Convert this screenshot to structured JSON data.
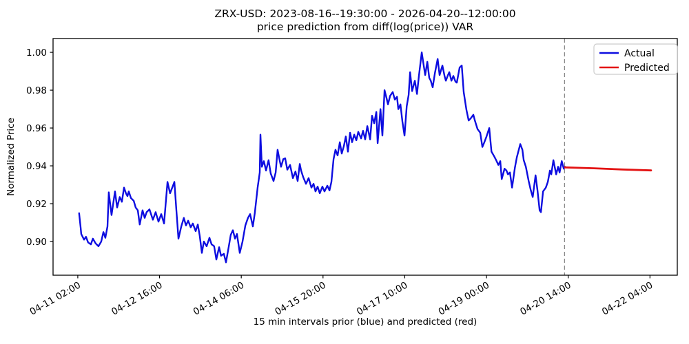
{
  "chart_data": {
    "type": "line",
    "title": "ZRX-USD: 2023-08-16--19:30:00 - 2026-04-20--12:00:00",
    "subtitle": "price prediction from diff(log(price)) VAR",
    "xlabel": "15 min intervals prior (blue) and predicted (red)",
    "ylabel": "Normalized Price",
    "x_unit": "hours since 04-11 02:00 tick (15-min interval series)",
    "xlim": [
      -11.5,
      278.7
    ],
    "ylim": [
      0.8822,
      1.0073
    ],
    "grid": false,
    "legend_position": "upper right",
    "frame_color": "#000000",
    "y_ticks": [
      {
        "value": 0.9,
        "label": "0.90"
      },
      {
        "value": 0.92,
        "label": "0.92"
      },
      {
        "value": 0.94,
        "label": "0.94"
      },
      {
        "value": 0.96,
        "label": "0.96"
      },
      {
        "value": 0.98,
        "label": "0.98"
      },
      {
        "value": 1.0,
        "label": "1.00"
      }
    ],
    "x_ticks": [
      {
        "hours": 0,
        "label": "04-11 02:00"
      },
      {
        "hours": 38,
        "label": "04-12 16:00"
      },
      {
        "hours": 76,
        "label": "04-14 06:00"
      },
      {
        "hours": 114,
        "label": "04-15 20:00"
      },
      {
        "hours": 152,
        "label": "04-17 10:00"
      },
      {
        "hours": 190,
        "label": "04-19 00:00"
      },
      {
        "hours": 228,
        "label": "04-20 14:00"
      },
      {
        "hours": 266,
        "label": "04-22 04:00"
      }
    ],
    "forecast_start": {
      "hours": 226.3,
      "line_style": "dashed",
      "color": "#888888"
    },
    "series": [
      {
        "name": "Actual",
        "color": "#0d0de0",
        "line_width": 2.4,
        "points": [
          [
            0.6,
            0.915
          ],
          [
            1.3,
            0.9075
          ],
          [
            1.6,
            0.904
          ],
          [
            2.9,
            0.901
          ],
          [
            3.8,
            0.9025
          ],
          [
            4.8,
            0.8995
          ],
          [
            6.1,
            0.8985
          ],
          [
            7.0,
            0.9015
          ],
          [
            8.3,
            0.899
          ],
          [
            9.6,
            0.8975
          ],
          [
            10.9,
            0.9
          ],
          [
            11.9,
            0.905
          ],
          [
            12.8,
            0.902
          ],
          [
            13.8,
            0.908
          ],
          [
            14.4,
            0.926
          ],
          [
            15.7,
            0.914
          ],
          [
            17.3,
            0.9265
          ],
          [
            18.3,
            0.918
          ],
          [
            19.5,
            0.9235
          ],
          [
            20.5,
            0.921
          ],
          [
            21.5,
            0.9285
          ],
          [
            22.4,
            0.9255
          ],
          [
            23.1,
            0.924
          ],
          [
            23.7,
            0.9265
          ],
          [
            24.7,
            0.923
          ],
          [
            26.0,
            0.9215
          ],
          [
            26.9,
            0.918
          ],
          [
            27.9,
            0.9165
          ],
          [
            28.8,
            0.909
          ],
          [
            30.1,
            0.9165
          ],
          [
            31.1,
            0.9125
          ],
          [
            32.0,
            0.9155
          ],
          [
            33.3,
            0.917
          ],
          [
            34.9,
            0.9115
          ],
          [
            36.2,
            0.9155
          ],
          [
            37.5,
            0.9105
          ],
          [
            38.8,
            0.9145
          ],
          [
            40.1,
            0.9095
          ],
          [
            41.7,
            0.9315
          ],
          [
            42.9,
            0.9255
          ],
          [
            43.9,
            0.9285
          ],
          [
            44.9,
            0.9315
          ],
          [
            45.8,
            0.917
          ],
          [
            46.8,
            0.9015
          ],
          [
            48.1,
            0.908
          ],
          [
            49.3,
            0.9125
          ],
          [
            50.3,
            0.9085
          ],
          [
            51.3,
            0.911
          ],
          [
            52.5,
            0.9075
          ],
          [
            53.5,
            0.9095
          ],
          [
            54.8,
            0.9055
          ],
          [
            55.8,
            0.909
          ],
          [
            56.7,
            0.903
          ],
          [
            57.7,
            0.894
          ],
          [
            58.6,
            0.9
          ],
          [
            59.9,
            0.8975
          ],
          [
            61.2,
            0.902
          ],
          [
            62.2,
            0.8985
          ],
          [
            63.4,
            0.8975
          ],
          [
            64.4,
            0.8905
          ],
          [
            65.7,
            0.897
          ],
          [
            66.6,
            0.8925
          ],
          [
            67.9,
            0.8935
          ],
          [
            68.9,
            0.889
          ],
          [
            70.2,
            0.8975
          ],
          [
            71.1,
            0.9035
          ],
          [
            72.1,
            0.906
          ],
          [
            73.1,
            0.9015
          ],
          [
            74.0,
            0.904
          ],
          [
            75.3,
            0.894
          ],
          [
            76.6,
            0.9
          ],
          [
            77.9,
            0.9085
          ],
          [
            79.1,
            0.9125
          ],
          [
            80.1,
            0.9145
          ],
          [
            81.4,
            0.908
          ],
          [
            82.3,
            0.915
          ],
          [
            83.6,
            0.9285
          ],
          [
            84.6,
            0.9365
          ],
          [
            84.9,
            0.9565
          ],
          [
            85.6,
            0.9395
          ],
          [
            86.5,
            0.9425
          ],
          [
            87.5,
            0.9375
          ],
          [
            88.7,
            0.943
          ],
          [
            89.7,
            0.936
          ],
          [
            91.0,
            0.932
          ],
          [
            92.0,
            0.9365
          ],
          [
            92.9,
            0.9485
          ],
          [
            93.9,
            0.9425
          ],
          [
            94.5,
            0.9395
          ],
          [
            95.5,
            0.9435
          ],
          [
            96.4,
            0.944
          ],
          [
            97.4,
            0.938
          ],
          [
            98.7,
            0.9405
          ],
          [
            100.0,
            0.9335
          ],
          [
            101.2,
            0.937
          ],
          [
            102.2,
            0.932
          ],
          [
            103.2,
            0.941
          ],
          [
            103.8,
            0.9375
          ],
          [
            104.8,
            0.934
          ],
          [
            106.1,
            0.9305
          ],
          [
            107.3,
            0.9335
          ],
          [
            108.6,
            0.9285
          ],
          [
            109.6,
            0.9305
          ],
          [
            110.5,
            0.9265
          ],
          [
            111.5,
            0.929
          ],
          [
            112.5,
            0.9255
          ],
          [
            113.7,
            0.929
          ],
          [
            114.7,
            0.9265
          ],
          [
            116.0,
            0.9295
          ],
          [
            117.0,
            0.927
          ],
          [
            117.9,
            0.9315
          ],
          [
            118.9,
            0.9435
          ],
          [
            119.8,
            0.9485
          ],
          [
            120.8,
            0.9455
          ],
          [
            121.8,
            0.9525
          ],
          [
            122.7,
            0.9465
          ],
          [
            123.7,
            0.9505
          ],
          [
            124.6,
            0.9555
          ],
          [
            125.6,
            0.9475
          ],
          [
            126.6,
            0.9575
          ],
          [
            127.5,
            0.9525
          ],
          [
            128.5,
            0.9565
          ],
          [
            129.5,
            0.9535
          ],
          [
            130.4,
            0.958
          ],
          [
            131.7,
            0.9545
          ],
          [
            132.6,
            0.9585
          ],
          [
            133.6,
            0.954
          ],
          [
            134.6,
            0.961
          ],
          [
            135.9,
            0.954
          ],
          [
            136.8,
            0.9665
          ],
          [
            137.8,
            0.9625
          ],
          [
            138.8,
            0.9685
          ],
          [
            139.4,
            0.952
          ],
          [
            140.7,
            0.97
          ],
          [
            141.6,
            0.956
          ],
          [
            142.6,
            0.98
          ],
          [
            143.6,
            0.9755
          ],
          [
            144.2,
            0.9725
          ],
          [
            145.2,
            0.977
          ],
          [
            146.4,
            0.979
          ],
          [
            147.4,
            0.975
          ],
          [
            148.4,
            0.9765
          ],
          [
            149.0,
            0.97
          ],
          [
            150.0,
            0.9725
          ],
          [
            150.9,
            0.9635
          ],
          [
            151.9,
            0.956
          ],
          [
            152.9,
            0.9715
          ],
          [
            153.8,
            0.9775
          ],
          [
            154.5,
            0.9895
          ],
          [
            155.4,
            0.9795
          ],
          [
            156.7,
            0.985
          ],
          [
            157.7,
            0.978
          ],
          [
            158.6,
            0.9875
          ],
          [
            159.9,
            1.0
          ],
          [
            160.9,
            0.9925
          ],
          [
            161.5,
            0.988
          ],
          [
            162.5,
            0.995
          ],
          [
            163.4,
            0.9865
          ],
          [
            164.1,
            0.985
          ],
          [
            165.0,
            0.9815
          ],
          [
            166.0,
            0.989
          ],
          [
            167.3,
            0.9965
          ],
          [
            168.2,
            0.988
          ],
          [
            169.5,
            0.993
          ],
          [
            170.5,
            0.9875
          ],
          [
            171.1,
            0.985
          ],
          [
            172.1,
            0.988
          ],
          [
            172.7,
            0.9895
          ],
          [
            173.7,
            0.985
          ],
          [
            174.6,
            0.9875
          ],
          [
            175.6,
            0.9845
          ],
          [
            176.2,
            0.984
          ],
          [
            177.5,
            0.992
          ],
          [
            178.5,
            0.993
          ],
          [
            179.4,
            0.979
          ],
          [
            180.7,
            0.9695
          ],
          [
            181.7,
            0.964
          ],
          [
            182.6,
            0.965
          ],
          [
            183.9,
            0.967
          ],
          [
            184.6,
            0.964
          ],
          [
            185.8,
            0.9595
          ],
          [
            187.1,
            0.9575
          ],
          [
            188.1,
            0.95
          ],
          [
            189.0,
            0.9525
          ],
          [
            190.0,
            0.9555
          ],
          [
            191.3,
            0.96
          ],
          [
            192.3,
            0.9475
          ],
          [
            193.6,
            0.945
          ],
          [
            194.5,
            0.943
          ],
          [
            195.5,
            0.9405
          ],
          [
            196.4,
            0.9425
          ],
          [
            197.1,
            0.933
          ],
          [
            198.4,
            0.9385
          ],
          [
            199.3,
            0.9375
          ],
          [
            200.0,
            0.9355
          ],
          [
            200.9,
            0.9365
          ],
          [
            201.9,
            0.9285
          ],
          [
            203.2,
            0.939
          ],
          [
            204.1,
            0.9445
          ],
          [
            205.7,
            0.9515
          ],
          [
            206.7,
            0.9485
          ],
          [
            207.3,
            0.943
          ],
          [
            208.3,
            0.9395
          ],
          [
            209.6,
            0.932
          ],
          [
            210.5,
            0.9275
          ],
          [
            211.5,
            0.9235
          ],
          [
            212.8,
            0.935
          ],
          [
            213.7,
            0.927
          ],
          [
            214.7,
            0.9165
          ],
          [
            215.3,
            0.9155
          ],
          [
            216.3,
            0.9265
          ],
          [
            217.6,
            0.9285
          ],
          [
            218.5,
            0.9315
          ],
          [
            219.5,
            0.9375
          ],
          [
            220.1,
            0.9355
          ],
          [
            221.1,
            0.943
          ],
          [
            222.4,
            0.9355
          ],
          [
            223.3,
            0.9395
          ],
          [
            224.0,
            0.9365
          ],
          [
            225.0,
            0.9425
          ],
          [
            225.9,
            0.9385
          ],
          [
            226.5,
            0.9395
          ]
        ]
      },
      {
        "name": "Predicted",
        "color": "#e31212",
        "line_width": 2.8,
        "points": [
          [
            226.5,
            0.9392
          ],
          [
            240.0,
            0.9387
          ],
          [
            253.0,
            0.9381
          ],
          [
            266.5,
            0.9376
          ]
        ]
      }
    ]
  }
}
